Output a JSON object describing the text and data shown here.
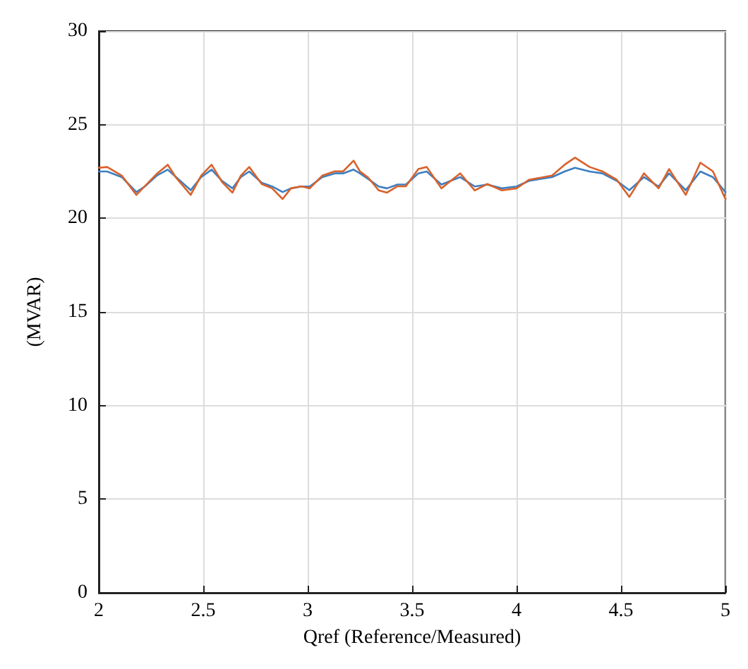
{
  "chart_data": {
    "type": "line",
    "xlabel": "Qref (Reference/Measured)",
    "ylabel": "(MVAR)",
    "xlim": [
      2,
      5
    ],
    "xticks": [
      2,
      2.5,
      3,
      3.5,
      4,
      4.5,
      5
    ],
    "ylim": [
      0,
      30
    ],
    "yticks": [
      0,
      5,
      10,
      15,
      20,
      25,
      30
    ],
    "grid": true,
    "marker": "none",
    "line_style": "solid",
    "series": [
      {
        "color": "#3d7fc1",
        "x": [
          2,
          2.04,
          2.11,
          2.18,
          2.22,
          2.28,
          2.33,
          2.37,
          2.44,
          2.49,
          2.54,
          2.59,
          2.64,
          2.68,
          2.72,
          2.78,
          2.83,
          2.88,
          2.92,
          2.97,
          3.01,
          3.07,
          3.13,
          3.17,
          3.22,
          3.25,
          3.29,
          3.34,
          3.38,
          3.43,
          3.47,
          3.53,
          3.57,
          3.64,
          3.73,
          3.8,
          3.86,
          3.93,
          4,
          4.06,
          4.17,
          4.23,
          4.28,
          4.35,
          4.41,
          4.48,
          4.54,
          4.61,
          4.68,
          4.73,
          4.81,
          4.88,
          4.94,
          5
        ],
        "values": [
          22.5,
          22.5,
          22.2,
          21.4,
          21.7,
          22.3,
          22.6,
          22.2,
          21.5,
          22.2,
          22.6,
          22,
          21.6,
          22.2,
          22.5,
          21.9,
          21.7,
          21.4,
          21.6,
          21.7,
          21.7,
          22.2,
          22.4,
          22.4,
          22.6,
          22.4,
          22.1,
          21.7,
          21.6,
          21.8,
          21.8,
          22.4,
          22.5,
          21.8,
          22.2,
          21.7,
          21.8,
          21.6,
          21.7,
          22,
          22.2,
          22.5,
          22.7,
          22.5,
          22.4,
          22,
          21.5,
          22.2,
          21.7,
          22.4,
          21.5,
          22.5,
          22.2,
          21.4
        ]
      },
      {
        "color": "#d9622b",
        "x": [
          2,
          2.04,
          2.11,
          2.18,
          2.22,
          2.28,
          2.33,
          2.37,
          2.44,
          2.49,
          2.54,
          2.59,
          2.64,
          2.68,
          2.72,
          2.78,
          2.83,
          2.88,
          2.92,
          2.97,
          3.01,
          3.07,
          3.13,
          3.17,
          3.22,
          3.25,
          3.29,
          3.34,
          3.38,
          3.43,
          3.47,
          3.53,
          3.57,
          3.64,
          3.73,
          3.8,
          3.86,
          3.93,
          4,
          4.06,
          4.17,
          4.23,
          4.28,
          4.35,
          4.41,
          4.48,
          4.54,
          4.61,
          4.68,
          4.73,
          4.81,
          4.88,
          4.94,
          5
        ],
        "values": [
          22.7,
          22.74,
          22.28,
          21.25,
          21.71,
          22.4,
          22.86,
          22.17,
          21.25,
          22.28,
          22.86,
          21.94,
          21.37,
          22.28,
          22.74,
          21.83,
          21.6,
          21.03,
          21.6,
          21.71,
          21.6,
          22.28,
          22.51,
          22.51,
          23.08,
          22.51,
          22.17,
          21.49,
          21.37,
          21.71,
          21.71,
          22.63,
          22.74,
          21.6,
          22.4,
          21.49,
          21.83,
          21.49,
          21.6,
          22.06,
          22.28,
          22.86,
          23.24,
          22.74,
          22.51,
          22.06,
          21.14,
          22.4,
          21.6,
          22.63,
          21.25,
          22.97,
          22.51,
          21.03
        ]
      }
    ]
  }
}
